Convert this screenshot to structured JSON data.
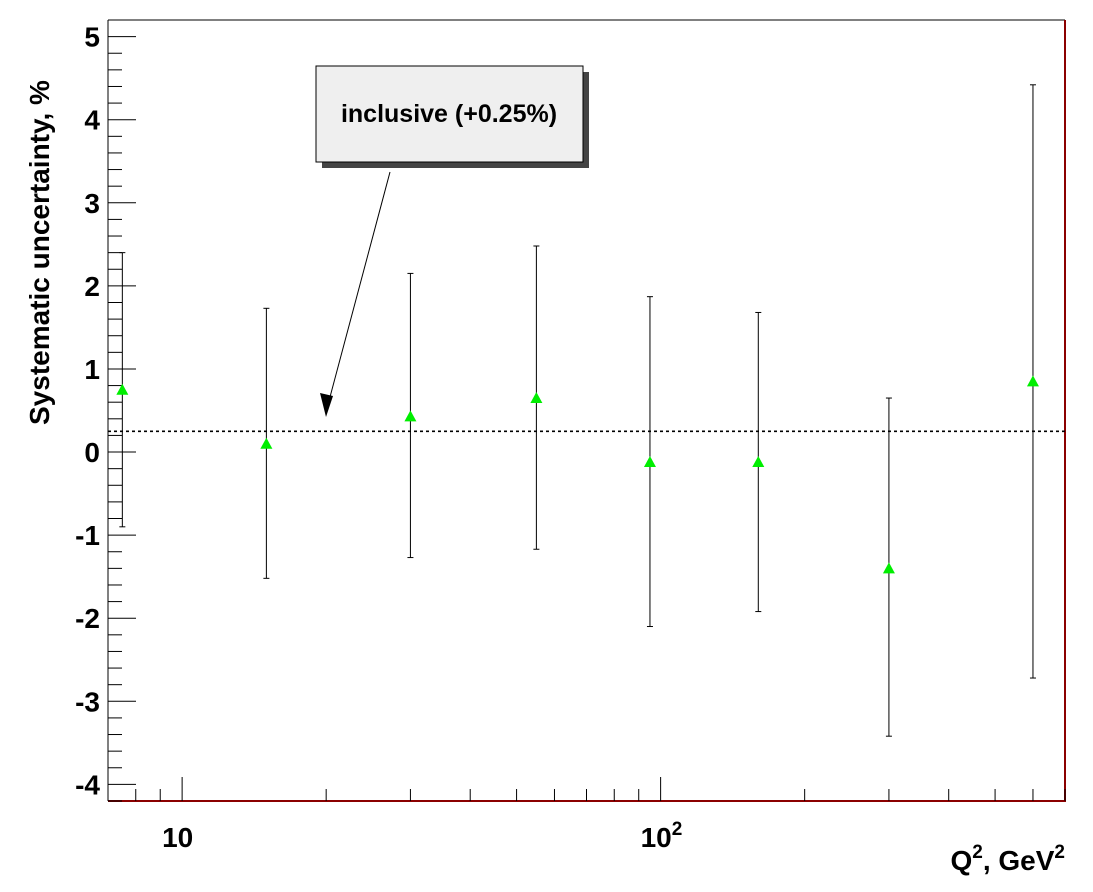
{
  "chart_data": {
    "type": "scatter",
    "xscale": "log",
    "xlim": [
      7,
      700
    ],
    "ylim": [
      -4.2,
      5.2
    ],
    "grid": false,
    "xlabel_main": "Q",
    "xlabel_sup": "2",
    "xlabel_rest": ", GeV",
    "xlabel_sup2": "2",
    "ylabel": "Systematic uncertainty, %",
    "xtick_labels": [
      {
        "value": 10,
        "base": "10",
        "sup": ""
      },
      {
        "value": 100,
        "base": "10",
        "sup": "2"
      }
    ],
    "ytick_labels": [
      {
        "value": 5,
        "text": "5"
      },
      {
        "value": 4,
        "text": "4"
      },
      {
        "value": 3,
        "text": "3"
      },
      {
        "value": 2,
        "text": "2"
      },
      {
        "value": 1,
        "text": "1"
      },
      {
        "value": 0,
        "text": "0"
      },
      {
        "value": -1,
        "text": "-1"
      },
      {
        "value": -2,
        "text": "-2"
      },
      {
        "value": -3,
        "text": "-3"
      },
      {
        "value": -4,
        "text": "-4"
      }
    ],
    "series": [
      {
        "marker": "triangle",
        "color": "#00ee00",
        "points": [
          {
            "x": 7.5,
            "y": 0.75,
            "ylow": -0.9,
            "yhigh": 2.4
          },
          {
            "x": 15,
            "y": 0.1,
            "ylow": -1.52,
            "yhigh": 1.73
          },
          {
            "x": 30,
            "y": 0.43,
            "ylow": -1.27,
            "yhigh": 2.15
          },
          {
            "x": 55,
            "y": 0.65,
            "ylow": -1.17,
            "yhigh": 2.48
          },
          {
            "x": 95,
            "y": -0.12,
            "ylow": -2.1,
            "yhigh": 1.87
          },
          {
            "x": 160,
            "y": -0.12,
            "ylow": -1.92,
            "yhigh": 1.68
          },
          {
            "x": 300,
            "y": -1.4,
            "ylow": -3.42,
            "yhigh": 0.65
          },
          {
            "x": 600,
            "y": 0.85,
            "ylow": -2.72,
            "yhigh": 4.42
          }
        ]
      }
    ],
    "reference_line": {
      "y": 0.25,
      "style": "dotted"
    },
    "annotation": {
      "text": "inclusive (+0.25%)",
      "arrow_to": {
        "x": 20,
        "y": 0.4
      }
    }
  }
}
